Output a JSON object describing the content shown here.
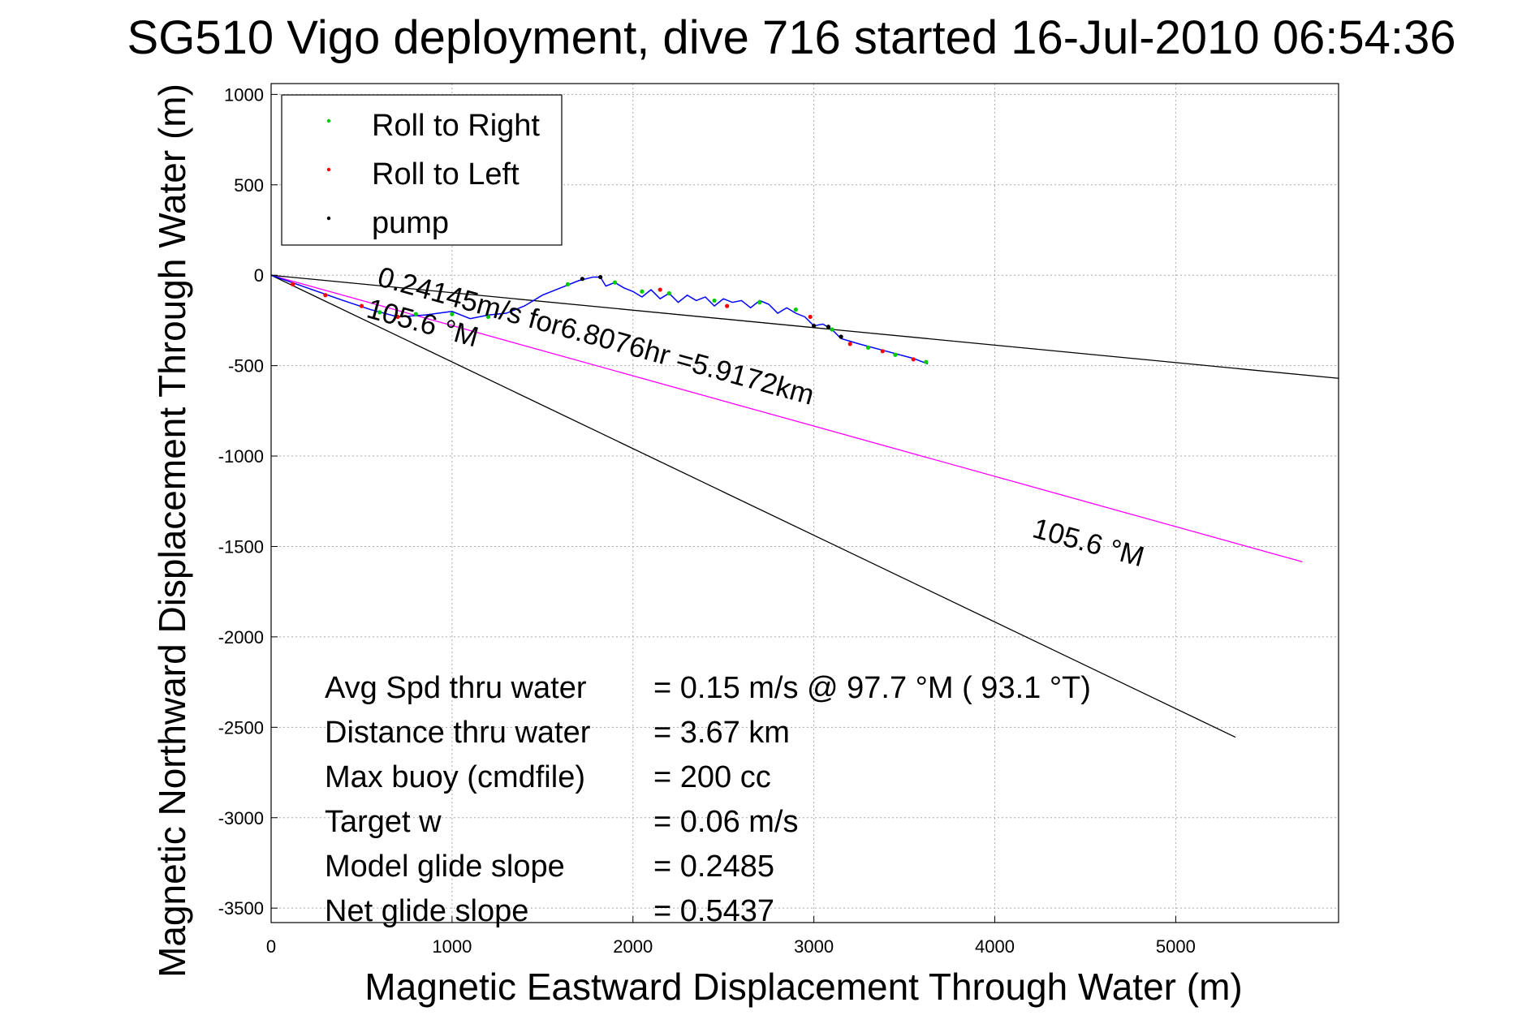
{
  "chart_data": {
    "type": "line",
    "title": "SG510 Vigo deployment, dive 716 started 16-Jul-2010 06:54:36",
    "xlabel": "Magnetic Eastward Displacement Through Water (m)",
    "ylabel": "Magnetic Northward Displacement Through Water (m)",
    "xlim": [
      0,
      5900
    ],
    "ylim": [
      -3580,
      1060
    ],
    "xticks": [
      0,
      1000,
      2000,
      3000,
      4000,
      5000
    ],
    "xtick_labels": [
      "0",
      "1000",
      "2000",
      "3000",
      "4000",
      "5000"
    ],
    "yticks": [
      1000,
      500,
      0,
      -500,
      -1000,
      -1500,
      -2000,
      -2500,
      -3000,
      -3500
    ],
    "ytick_labels": [
      "1000",
      "500",
      "0",
      "-500",
      "-1000",
      "-1500",
      "-2000",
      "-2500",
      "-3000",
      "-3500"
    ],
    "grid": true,
    "legend_position": "top-left",
    "legend": [
      {
        "label": "Roll to Right",
        "color": "#00cc00"
      },
      {
        "label": "Roll to Left",
        "color": "#ff0000"
      },
      {
        "label": "pump",
        "color": "#000000"
      }
    ],
    "series": [
      {
        "color": "#0000ff",
        "x": [
          0,
          200,
          400,
          550,
          700,
          850,
          1000,
          1100,
          1200,
          1300,
          1400,
          1500,
          1600,
          1700,
          1780,
          1820,
          1850,
          1900,
          1950,
          2000,
          2050,
          2100,
          2150,
          2200,
          2250,
          2300,
          2350,
          2400,
          2450,
          2500,
          2550,
          2600,
          2650,
          2700,
          2750,
          2800,
          2850,
          2900,
          2950,
          3000,
          3050,
          3100,
          3150,
          3250,
          3400,
          3550,
          3630
        ],
        "y": [
          0,
          -70,
          -140,
          -190,
          -230,
          -220,
          -200,
          -240,
          -220,
          -210,
          -170,
          -110,
          -70,
          -30,
          -10,
          -10,
          -60,
          -40,
          -70,
          -90,
          -120,
          -80,
          -130,
          -100,
          -150,
          -110,
          -140,
          -120,
          -170,
          -130,
          -150,
          -140,
          -180,
          -140,
          -160,
          -210,
          -180,
          -210,
          -230,
          -280,
          -270,
          -300,
          -350,
          -380,
          -420,
          -460,
          -490
        ]
      },
      {
        "name": "Roll to Right",
        "color": "#00cc00",
        "x": [
          600,
          800,
          1000,
          1200,
          1640,
          1900,
          2050,
          2200,
          2450,
          2700,
          2900,
          3100,
          3300,
          3450,
          3620
        ],
        "y": [
          -205,
          -215,
          -215,
          -230,
          -50,
          -40,
          -90,
          -100,
          -140,
          -150,
          -190,
          -300,
          -400,
          -440,
          -480
        ]
      },
      {
        "name": "Roll to Left",
        "color": "#ff0000",
        "x": [
          120,
          300,
          500,
          700,
          2150,
          2520,
          2980,
          3200,
          3380,
          3550
        ],
        "y": [
          -50,
          -110,
          -170,
          -230,
          -80,
          -170,
          -230,
          -380,
          -420,
          -465
        ]
      },
      {
        "name": "pump",
        "color": "#000000",
        "x": [
          1720,
          1820,
          3000,
          3080,
          3150
        ],
        "y": [
          -20,
          -10,
          -280,
          -285,
          -340
        ]
      }
    ],
    "reference_lines": [
      {
        "color": "#ff00ff",
        "x": [
          0,
          5700
        ],
        "y": [
          0,
          -1585
        ]
      },
      {
        "color": "#000000",
        "x": [
          0,
          5900
        ],
        "y": [
          0,
          -570
        ]
      },
      {
        "color": "#000000",
        "x": [
          0,
          5330
        ],
        "y": [
          0,
          -2555
        ]
      }
    ],
    "annotations": [
      {
        "text": "0.24145m/s for6.8076hr =5.9172km",
        "x": 580,
        "y": -55,
        "angle": 15.4
      },
      {
        "text": "105.6 °M",
        "x": 520,
        "y": -230,
        "angle": 15.4
      },
      {
        "text": "105.6 °M",
        "x": 4200,
        "y": -1445,
        "angle": 15.4
      }
    ],
    "stats": [
      {
        "label": "Avg Spd thru water",
        "value": "=  0.15 m/s @  97.7 °M ( 93.1 °T)"
      },
      {
        "label": "Distance thru water",
        "value": "=  3.67 km"
      },
      {
        "label": "Max buoy (cmdfile)",
        "value": "= 200 cc"
      },
      {
        "label": "Target w",
        "value": "= 0.06 m/s"
      },
      {
        "label": "Model glide slope",
        "value": "= 0.2485"
      },
      {
        "label": "Net glide slope",
        "value": "= 0.5437"
      }
    ]
  }
}
